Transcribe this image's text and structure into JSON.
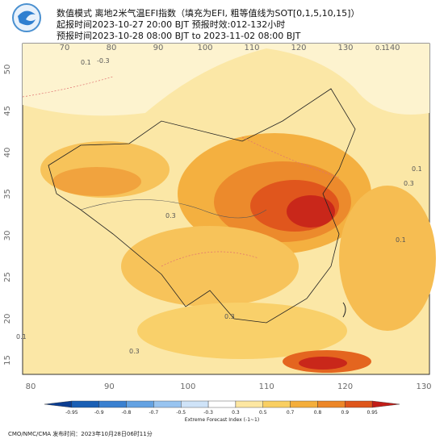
{
  "header": {
    "title": "数值模式 离地2米气温EFI指数（填充为EFI, 粗等值线为SOT[0,1,5,10,15]）",
    "init_time": "起报时间2023-10-27 20:00 BJT 预报时效:012-132小时",
    "valid_time": "预报时间2023-10-28 08:00 BJT to 2023-11-02 08:00 BJT"
  },
  "map": {
    "top_lon_ticks": [
      70,
      80,
      90,
      100,
      110,
      120,
      130,
      140
    ],
    "bottom_lon_ticks": [
      80,
      90,
      100,
      110,
      120,
      130
    ],
    "lat_ticks": [
      50,
      45,
      40,
      35,
      30,
      25,
      20,
      15
    ],
    "contour_labels": [
      0.1,
      -0.3,
      0.1,
      0.3,
      0.3,
      0.1,
      0.3,
      0.1,
      0.3,
      0.1
    ]
  },
  "colorbar": {
    "ticks": [
      -0.95,
      -0.9,
      -0.8,
      -0.7,
      -0.5,
      -0.3,
      0.3,
      0.5,
      0.7,
      0.8,
      0.9,
      0.95
    ],
    "colors": [
      "#0b3d91",
      "#1a5fb4",
      "#3a80d0",
      "#64a2e2",
      "#98c4f0",
      "#cfe3f8",
      "#ffffff",
      "#fde7a2",
      "#f9cf62",
      "#f4ae3c",
      "#ec8628",
      "#de561c",
      "#c21d18"
    ],
    "label": "Extreme Forecast Index (-1~1)"
  },
  "footer": "CMO/NMC/CMA 发布时间：2023年10月28日06时11分"
}
